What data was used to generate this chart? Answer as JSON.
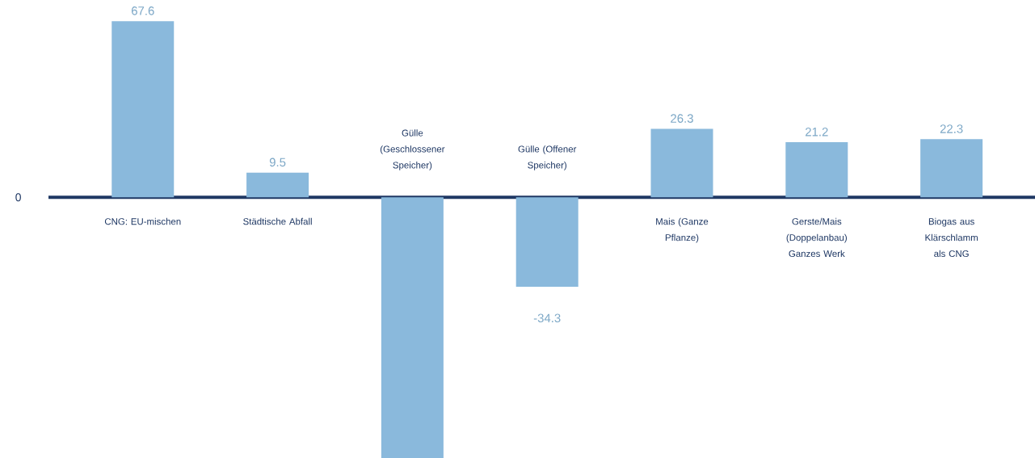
{
  "chart_data": {
    "type": "bar",
    "categories": [
      "CNG: EU-mischen",
      "Städtische Abfall",
      "Gülle (Geschlossener Speicher)",
      "Gülle (Offener Speicher)",
      "Mais (Ganze Pflanze)",
      "Gerste/Mais (Doppelanbau) Ganzes Werk",
      "Biogas aus Klärschlamm als CNG"
    ],
    "values": [
      67.6,
      9.5,
      -100,
      -34.3,
      26.3,
      21.2,
      22.3
    ],
    "value_labels": [
      "67.6",
      "9.5",
      null,
      "-34.3",
      "26.3",
      "21.2",
      "22.3"
    ],
    "color": "#8ab9dc",
    "annotations": [
      "0"
    ]
  }
}
